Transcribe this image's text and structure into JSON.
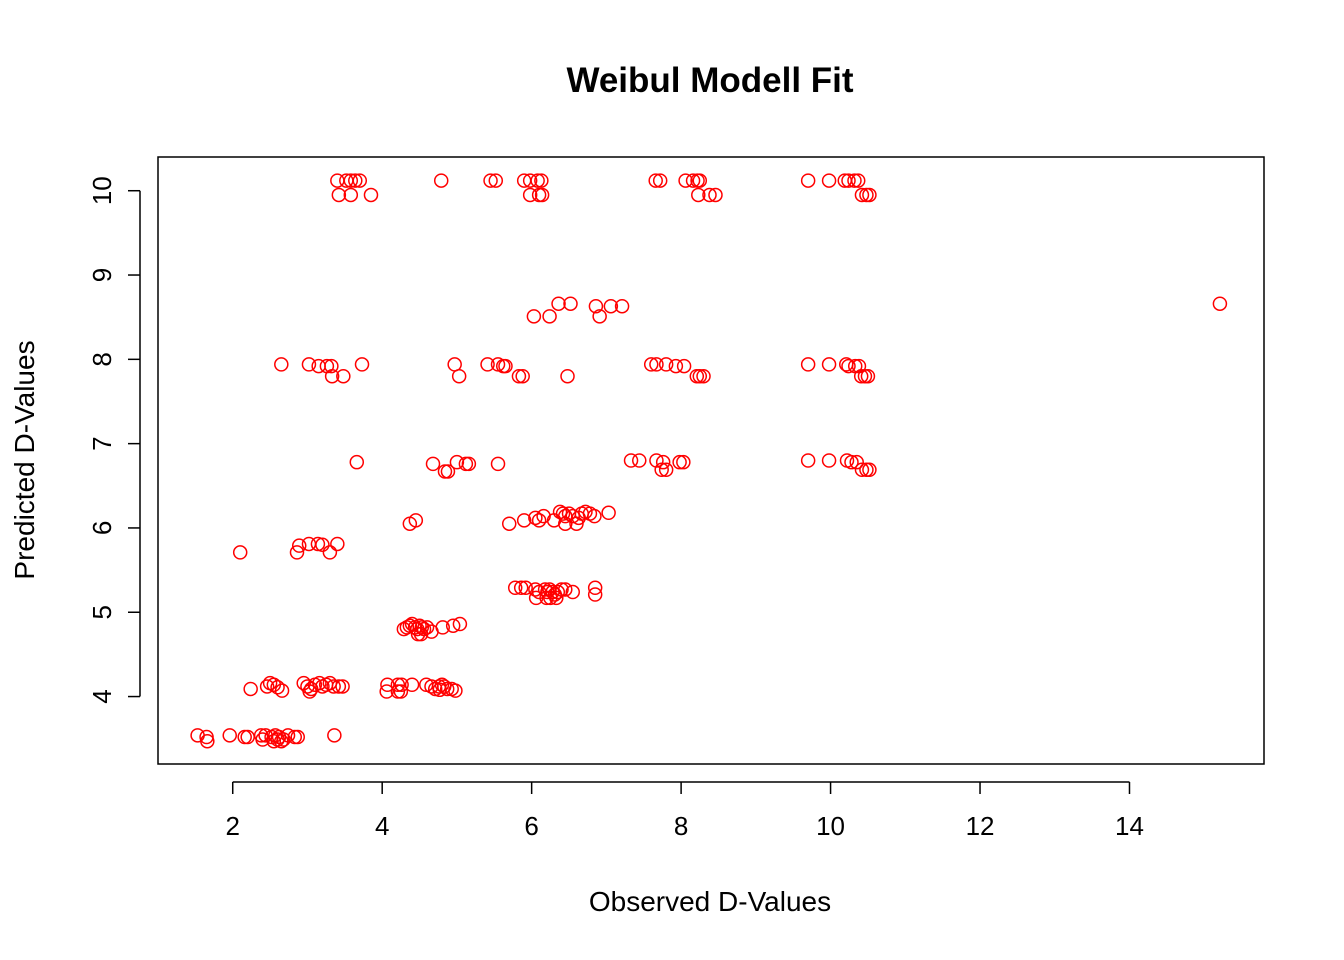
{
  "chart_data": {
    "type": "scatter",
    "title": "Weibul Modell Fit",
    "xlabel": "Observed D-Values",
    "ylabel": "Predicted D-Values",
    "xlim": [
      1,
      15.8
    ],
    "ylim": [
      3.2,
      10.4
    ],
    "xticks": [
      2,
      4,
      6,
      8,
      10,
      12,
      14
    ],
    "yticks": [
      4,
      5,
      6,
      7,
      8,
      9,
      10
    ],
    "marker": "open-circle",
    "color": "#ff0000",
    "series": [
      {
        "x": [
          3.4,
          3.52,
          3.58,
          3.64,
          3.7,
          4.79,
          5.45,
          5.52,
          5.9,
          5.98,
          6.08,
          6.13,
          7.66,
          7.72,
          8.06,
          8.16,
          8.22,
          8.25,
          9.7,
          9.98,
          10.19,
          10.24,
          10.32,
          10.37,
          3.42,
          3.58,
          3.85,
          5.98,
          6.1,
          6.14,
          8.23,
          8.38,
          8.46,
          10.42,
          10.48,
          10.52
        ],
        "y": [
          10.12,
          10.12,
          10.12,
          10.12,
          10.12,
          10.12,
          10.12,
          10.12,
          10.12,
          10.12,
          10.12,
          10.12,
          10.12,
          10.12,
          10.12,
          10.12,
          10.12,
          10.12,
          10.12,
          10.12,
          10.12,
          10.12,
          10.12,
          10.12,
          9.95,
          9.95,
          9.95,
          9.95,
          9.95,
          9.95,
          9.95,
          9.95,
          9.95,
          9.95,
          9.95,
          9.95
        ]
      },
      {
        "x": [
          6.36,
          6.52,
          6.86,
          7.06,
          7.21,
          6.03,
          6.24,
          6.91,
          15.21
        ],
        "y": [
          8.66,
          8.66,
          8.63,
          8.63,
          8.63,
          8.51,
          8.51,
          8.51,
          8.66
        ]
      },
      {
        "x": [
          2.65,
          3.02,
          3.15,
          3.26,
          3.32,
          3.73,
          4.97,
          5.41,
          5.55,
          5.62,
          5.65,
          7.6,
          7.67,
          7.8,
          7.93,
          8.04,
          9.7,
          9.98,
          10.21,
          10.24,
          10.33,
          10.38,
          3.33,
          3.48,
          5.03,
          5.83,
          5.88,
          6.48,
          8.21,
          8.25,
          8.3,
          10.41,
          10.46,
          10.5
        ],
        "y": [
          7.94,
          7.94,
          7.92,
          7.92,
          7.92,
          7.94,
          7.94,
          7.94,
          7.94,
          7.92,
          7.92,
          7.94,
          7.94,
          7.94,
          7.92,
          7.92,
          7.94,
          7.94,
          7.94,
          7.92,
          7.92,
          7.92,
          7.8,
          7.8,
          7.8,
          7.8,
          7.8,
          7.8,
          7.8,
          7.8,
          7.8,
          7.8,
          7.8,
          7.8
        ]
      },
      {
        "x": [
          3.66,
          4.68,
          5.0,
          5.12,
          5.16,
          5.55,
          7.33,
          7.44,
          7.67,
          7.76,
          7.98,
          8.03,
          9.7,
          9.98,
          10.22,
          10.28,
          10.35,
          4.84,
          4.88,
          7.74,
          7.8,
          10.42,
          10.48,
          10.52
        ],
        "y": [
          6.78,
          6.76,
          6.78,
          6.76,
          6.76,
          6.76,
          6.8,
          6.8,
          6.8,
          6.78,
          6.78,
          6.78,
          6.8,
          6.8,
          6.8,
          6.78,
          6.78,
          6.67,
          6.67,
          6.69,
          6.69,
          6.69,
          6.69,
          6.69
        ]
      },
      {
        "x": [
          2.1,
          2.86,
          2.89,
          3.02,
          3.14,
          3.2,
          3.3,
          3.4,
          4.37,
          4.45,
          5.7,
          5.9,
          6.05,
          6.1,
          6.16,
          6.3,
          6.38,
          6.42,
          6.45,
          6.5,
          6.55,
          6.63,
          6.67,
          6.72,
          6.78,
          6.84,
          7.03,
          6.45,
          6.6
        ],
        "y": [
          5.71,
          5.71,
          5.79,
          5.81,
          5.81,
          5.8,
          5.71,
          5.81,
          6.05,
          6.09,
          6.05,
          6.09,
          6.12,
          6.09,
          6.14,
          6.09,
          6.19,
          6.17,
          6.14,
          6.17,
          6.14,
          6.12,
          6.17,
          6.19,
          6.17,
          6.14,
          6.18,
          6.05,
          6.05
        ]
      },
      {
        "x": [
          5.78,
          5.86,
          5.92,
          6.05,
          6.1,
          6.18,
          6.21,
          6.24,
          6.28,
          6.31,
          6.35,
          6.4,
          6.45,
          6.55,
          6.85,
          6.06,
          6.2,
          6.25,
          6.33,
          6.85
        ],
        "y": [
          5.29,
          5.29,
          5.29,
          5.27,
          5.24,
          5.27,
          5.24,
          5.27,
          5.24,
          5.21,
          5.24,
          5.27,
          5.27,
          5.24,
          5.29,
          5.17,
          5.17,
          5.17,
          5.17,
          5.21
        ]
      },
      {
        "x": [
          4.29,
          4.33,
          4.37,
          4.4,
          4.44,
          4.47,
          4.5,
          4.53,
          4.56,
          4.6,
          4.66,
          4.81,
          4.95,
          5.04,
          4.48,
          4.52
        ],
        "y": [
          4.8,
          4.82,
          4.84,
          4.86,
          4.82,
          4.8,
          4.84,
          4.82,
          4.8,
          4.82,
          4.77,
          4.82,
          4.84,
          4.86,
          4.74,
          4.74
        ]
      },
      {
        "x": [
          2.24,
          2.46,
          2.5,
          2.55,
          2.6,
          2.66,
          2.95,
          3.0,
          3.05,
          3.1,
          3.16,
          3.2,
          3.25,
          3.3,
          3.35,
          3.42,
          3.47,
          4.07,
          4.21,
          4.26,
          4.4,
          4.59,
          4.66,
          4.71,
          4.76,
          4.8,
          4.83,
          4.87,
          4.93,
          4.98,
          3.03,
          4.06,
          4.21,
          4.25,
          4.77
        ],
        "y": [
          4.09,
          4.12,
          4.16,
          4.14,
          4.11,
          4.07,
          4.16,
          4.12,
          4.09,
          4.14,
          4.16,
          4.12,
          4.14,
          4.16,
          4.12,
          4.12,
          4.12,
          4.14,
          4.14,
          4.14,
          4.14,
          4.14,
          4.12,
          4.09,
          4.12,
          4.14,
          4.12,
          4.09,
          4.09,
          4.07,
          4.06,
          4.06,
          4.06,
          4.06,
          4.08
        ]
      },
      {
        "x": [
          1.53,
          1.65,
          1.96,
          2.16,
          2.2,
          2.38,
          2.44,
          2.52,
          2.57,
          2.62,
          2.68,
          2.74,
          2.83,
          3.36,
          1.66,
          2.4,
          2.55,
          2.6,
          2.65,
          2.87
        ],
        "y": [
          3.54,
          3.52,
          3.54,
          3.52,
          3.52,
          3.54,
          3.54,
          3.52,
          3.54,
          3.52,
          3.49,
          3.54,
          3.52,
          3.54,
          3.47,
          3.49,
          3.47,
          3.49,
          3.47,
          3.52
        ]
      }
    ]
  }
}
